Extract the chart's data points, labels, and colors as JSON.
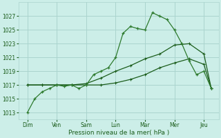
{
  "background_color": "#cceee8",
  "grid_color": "#aad4ce",
  "line_color_dark": "#1a5c1a",
  "line_color_mid": "#2d7a2d",
  "xlabel": "Pression niveau de la mer( hPa )",
  "ylim": [
    1012,
    1029
  ],
  "yticks": [
    1013,
    1015,
    1017,
    1019,
    1021,
    1023,
    1025,
    1027
  ],
  "days": [
    "Dim",
    "Ven",
    "Sam",
    "Lun",
    "Mar",
    "Mer",
    "Jeu"
  ],
  "day_positions": [
    0,
    1,
    2,
    3,
    4,
    5,
    6
  ],
  "line1_x": [
    0.0,
    0.25,
    0.5,
    0.75,
    1.0,
    1.25,
    1.5,
    1.75,
    2.0,
    2.25,
    2.5,
    2.75,
    3.0,
    3.25,
    3.5,
    3.75,
    4.0,
    4.25,
    4.5,
    4.75,
    5.0,
    5.25,
    5.5,
    5.75,
    6.0,
    6.25
  ],
  "line1_y": [
    1013.0,
    1015.0,
    1016.0,
    1016.5,
    1017.0,
    1016.8,
    1017.0,
    1016.5,
    1017.0,
    1018.5,
    1019.0,
    1019.5,
    1021.0,
    1024.5,
    1025.5,
    1025.2,
    1025.0,
    1027.5,
    1027.0,
    1026.5,
    1025.0,
    1023.0,
    1020.5,
    1018.5,
    1019.0,
    1016.5
  ],
  "line2_x": [
    0.0,
    0.5,
    1.0,
    1.5,
    2.0,
    2.5,
    3.0,
    3.5,
    4.0,
    4.5,
    5.0,
    5.5,
    6.0,
    6.25
  ],
  "line2_y": [
    1017.0,
    1017.0,
    1017.0,
    1017.0,
    1017.2,
    1018.0,
    1019.0,
    1019.8,
    1020.8,
    1021.5,
    1022.8,
    1023.0,
    1021.5,
    1016.5
  ],
  "line3_x": [
    0.0,
    0.5,
    1.0,
    1.5,
    2.0,
    2.5,
    3.0,
    3.5,
    4.0,
    4.5,
    5.0,
    5.5,
    6.0,
    6.25
  ],
  "line3_y": [
    1017.0,
    1017.0,
    1017.0,
    1017.0,
    1017.0,
    1017.0,
    1017.3,
    1017.8,
    1018.5,
    1019.5,
    1020.2,
    1020.8,
    1020.0,
    1016.5
  ]
}
